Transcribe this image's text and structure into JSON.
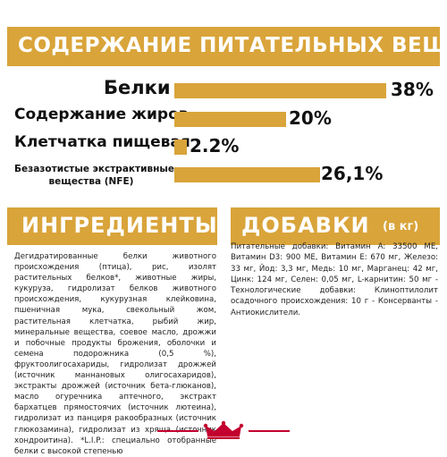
{
  "nutrients": {
    "title": "СОДЕРЖАНИЕ ПИТАТЕЛЬНЫХ ВЕЩЕСТВ",
    "rows": [
      {
        "label": "Белки",
        "value": "38%",
        "level": 38
      },
      {
        "label": "Содержание жиров",
        "value": "20%",
        "level": 20
      },
      {
        "label": "Клетчатка пищевая",
        "value": "2.2%",
        "level": 2.2
      },
      {
        "label_line1": "Безазотистые экстрактивные",
        "label_line2": "вещества (NFE)",
        "value": "26,1%",
        "level": 26.1
      }
    ]
  },
  "ingredients": {
    "title": "ИНГРЕДИЕНТЫ",
    "text": "Дегидратированные белки животного происхождения (птица), рис, изолят растительных белков*, животные жиры, кукуруза, гидролизат белков животного происхождения, кукурузная клейковина, пшеничная мука, свекольный жом, растительная клетчатка, рыбий жир, минеральные вещества, соевое масло, дрожжи и побочные продукты брожения, оболочки и семена подорожника (0,5 %), фруктоолигосахариды, гидролизат дрожжей (источник маннановых олигосахаридов), экстракты дрожжей (источник бета-глюканов), масло огуречника аптечного, экстракт бархатцев прямостоячих (источник лютеина), гидролизат из панциря ракообразных (источник глюкозамина), гидролизат из хряща (источник хондроитина). *L.I.P.: специально отобранные белки с высокой степенью"
  },
  "additives": {
    "title": "ДОБАВКИ",
    "unit": "(в кг)",
    "text": "Питательные добавки: Витамин A: 33500 ME, Витамин D3: 900 ME, Витамин E: 670 мг, Железо: 33 мг, Йод: 3,3 мг, Медь: 10 мг, Марганец: 42 мг, Цинк: 124 мг, Селен: 0,05 мг, L-карнитин: 50 мг - Технологические добавки: Клиноптилолит осадочного происхождения: 10 г - Консерванты - Антиокислители."
  },
  "colors": {
    "accent": "#d9a43a",
    "brand_red": "#c3002f"
  },
  "logo_icon": "royal-canin-crown-icon"
}
